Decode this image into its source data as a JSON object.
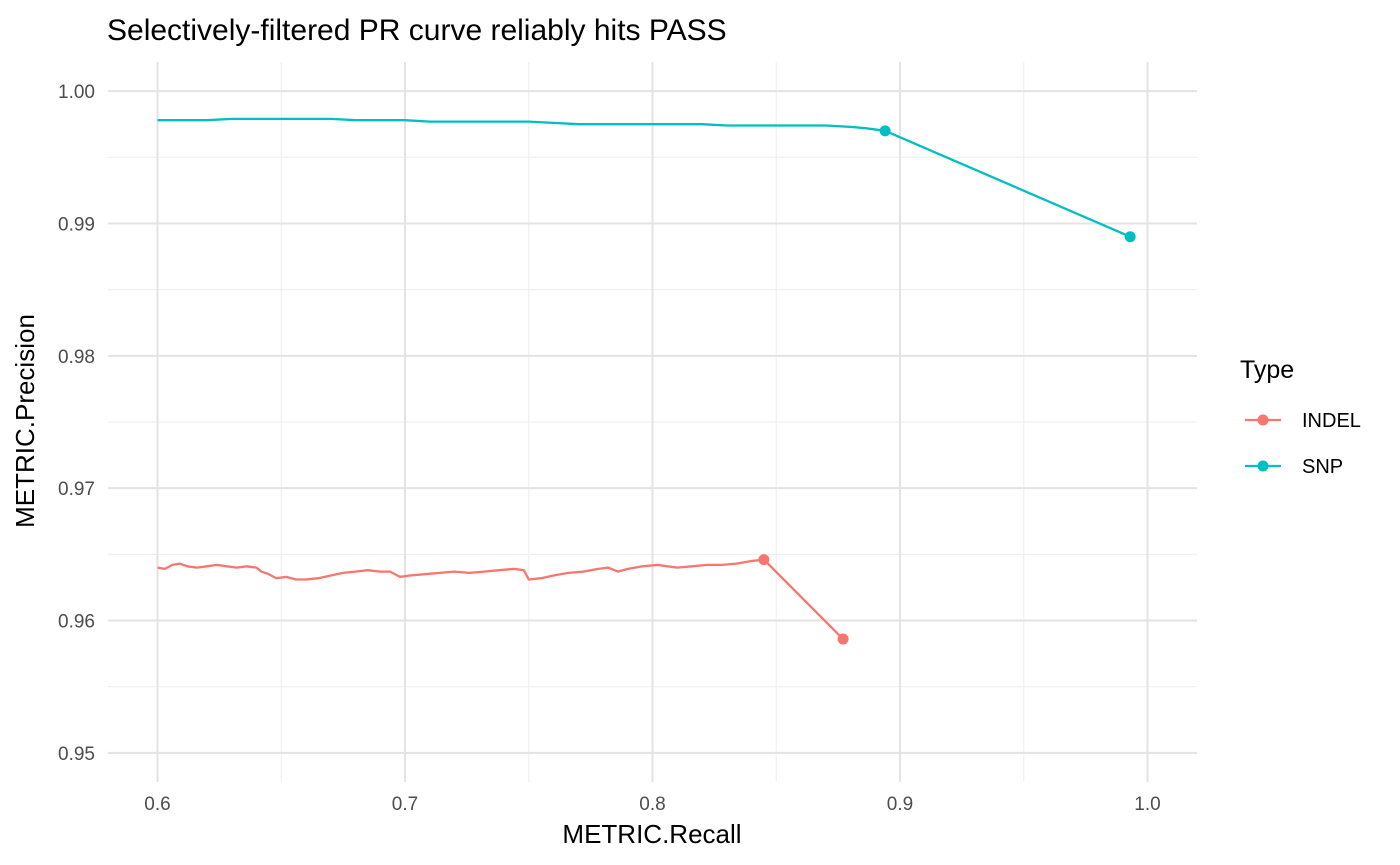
{
  "chart_data": {
    "type": "line",
    "title": "Selectively-filtered PR curve reliably hits PASS",
    "xlabel": "METRIC.Recall",
    "ylabel": "METRIC.Precision",
    "xlim": [
      0.58,
      1.02
    ],
    "ylim": [
      0.9478,
      1.0022
    ],
    "x_ticks": [
      0.6,
      0.7,
      0.8,
      0.9,
      1.0
    ],
    "x_tick_labels": [
      "0.6",
      "0.7",
      "0.8",
      "0.9",
      "1.0"
    ],
    "y_ticks": [
      0.95,
      0.96,
      0.97,
      0.98,
      0.99,
      1.0
    ],
    "y_tick_labels": [
      "0.95",
      "0.96",
      "0.97",
      "0.98",
      "0.99",
      "1.00"
    ],
    "grid": true,
    "legend": {
      "title": "Type",
      "position": "right"
    },
    "series": [
      {
        "name": "INDEL",
        "color": "#F8766D",
        "curve": [
          [
            0.6,
            0.964
          ],
          [
            0.603,
            0.9639
          ],
          [
            0.606,
            0.9642
          ],
          [
            0.609,
            0.9643
          ],
          [
            0.612,
            0.9641
          ],
          [
            0.616,
            0.964
          ],
          [
            0.62,
            0.9641
          ],
          [
            0.624,
            0.9642
          ],
          [
            0.628,
            0.9641
          ],
          [
            0.632,
            0.964
          ],
          [
            0.636,
            0.9641
          ],
          [
            0.64,
            0.964
          ],
          [
            0.642,
            0.9637
          ],
          [
            0.645,
            0.9635
          ],
          [
            0.648,
            0.9632
          ],
          [
            0.652,
            0.9633
          ],
          [
            0.656,
            0.9631
          ],
          [
            0.66,
            0.9631
          ],
          [
            0.665,
            0.9632
          ],
          [
            0.67,
            0.9634
          ],
          [
            0.675,
            0.9636
          ],
          [
            0.68,
            0.9637
          ],
          [
            0.685,
            0.9638
          ],
          [
            0.69,
            0.9637
          ],
          [
            0.694,
            0.9637
          ],
          [
            0.698,
            0.9633
          ],
          [
            0.702,
            0.9634
          ],
          [
            0.708,
            0.9635
          ],
          [
            0.714,
            0.9636
          ],
          [
            0.72,
            0.9637
          ],
          [
            0.726,
            0.9636
          ],
          [
            0.732,
            0.9637
          ],
          [
            0.738,
            0.9638
          ],
          [
            0.744,
            0.9639
          ],
          [
            0.748,
            0.9638
          ],
          [
            0.75,
            0.9631
          ],
          [
            0.755,
            0.9632
          ],
          [
            0.76,
            0.9634
          ],
          [
            0.766,
            0.9636
          ],
          [
            0.772,
            0.9637
          ],
          [
            0.778,
            0.9639
          ],
          [
            0.782,
            0.964
          ],
          [
            0.786,
            0.9637
          ],
          [
            0.79,
            0.9639
          ],
          [
            0.796,
            0.9641
          ],
          [
            0.802,
            0.9642
          ],
          [
            0.806,
            0.9641
          ],
          [
            0.81,
            0.964
          ],
          [
            0.816,
            0.9641
          ],
          [
            0.822,
            0.9642
          ],
          [
            0.828,
            0.9642
          ],
          [
            0.834,
            0.9643
          ],
          [
            0.84,
            0.9645
          ],
          [
            0.845,
            0.9646
          ]
        ],
        "points": [
          [
            0.845,
            0.9646
          ],
          [
            0.877,
            0.9586
          ]
        ]
      },
      {
        "name": "SNP",
        "color": "#00BFC4",
        "curve": [
          [
            0.6,
            0.9978
          ],
          [
            0.61,
            0.9978
          ],
          [
            0.62,
            0.9978
          ],
          [
            0.63,
            0.9979
          ],
          [
            0.64,
            0.9979
          ],
          [
            0.65,
            0.9979
          ],
          [
            0.66,
            0.9979
          ],
          [
            0.67,
            0.9979
          ],
          [
            0.68,
            0.9978
          ],
          [
            0.69,
            0.9978
          ],
          [
            0.7,
            0.9978
          ],
          [
            0.71,
            0.9977
          ],
          [
            0.72,
            0.9977
          ],
          [
            0.73,
            0.9977
          ],
          [
            0.74,
            0.9977
          ],
          [
            0.75,
            0.9977
          ],
          [
            0.76,
            0.9976
          ],
          [
            0.77,
            0.9975
          ],
          [
            0.78,
            0.9975
          ],
          [
            0.79,
            0.9975
          ],
          [
            0.8,
            0.9975
          ],
          [
            0.81,
            0.9975
          ],
          [
            0.82,
            0.9975
          ],
          [
            0.83,
            0.9974
          ],
          [
            0.84,
            0.9974
          ],
          [
            0.85,
            0.9974
          ],
          [
            0.86,
            0.9974
          ],
          [
            0.87,
            0.9974
          ],
          [
            0.88,
            0.9973
          ],
          [
            0.886,
            0.9972
          ],
          [
            0.894,
            0.997
          ]
        ],
        "points": [
          [
            0.894,
            0.997
          ],
          [
            0.993,
            0.989
          ]
        ]
      }
    ]
  }
}
